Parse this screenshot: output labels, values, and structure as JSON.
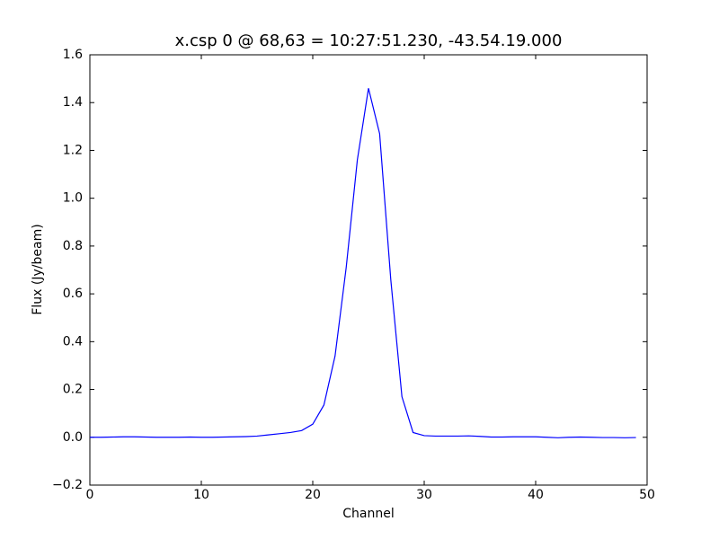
{
  "chart_data": {
    "type": "line",
    "title": "x.csp 0 @ 68,63 = 10:27:51.230, -43.54.19.000",
    "x_label": "Channel",
    "y_label": "Flux (Jy/beam)",
    "x": [
      0,
      1,
      2,
      3,
      4,
      5,
      6,
      7,
      8,
      9,
      10,
      11,
      12,
      13,
      14,
      15,
      16,
      17,
      18,
      19,
      20,
      21,
      22,
      23,
      24,
      25,
      26,
      27,
      28,
      29,
      30,
      31,
      32,
      33,
      34,
      35,
      36,
      37,
      38,
      39,
      40,
      41,
      42,
      43,
      44,
      45,
      46,
      47,
      48,
      49
    ],
    "series": [
      {
        "color": "#0000ff",
        "values": [
          0.0,
          0.0,
          0.001,
          0.002,
          0.002,
          0.001,
          0.0,
          0.0,
          0.0,
          0.001,
          0.0,
          0.0,
          0.001,
          0.002,
          0.003,
          0.005,
          0.01,
          0.015,
          0.02,
          0.028,
          0.055,
          0.135,
          0.34,
          0.71,
          1.16,
          1.46,
          1.27,
          0.66,
          0.17,
          0.02,
          0.007,
          0.005,
          0.005,
          0.005,
          0.006,
          0.004,
          0.001,
          0.001,
          0.002,
          0.002,
          0.002,
          0.0,
          -0.002,
          0.0,
          0.001,
          0.0,
          -0.001,
          -0.001,
          -0.002,
          -0.001
        ]
      }
    ],
    "xlim": [
      0,
      50
    ],
    "xticks": [
      0,
      10,
      20,
      30,
      40,
      50
    ],
    "ylim": [
      -0.2,
      1.6
    ],
    "yticks": [
      {
        "value": -0.2,
        "label": "−0.2"
      },
      {
        "value": 0,
        "label": "0.0"
      },
      0.2,
      0.4,
      0.6,
      0.8,
      {
        "value": 1,
        "label": "1.0"
      },
      1.2,
      1.4,
      1.6
    ],
    "grid": false
  }
}
